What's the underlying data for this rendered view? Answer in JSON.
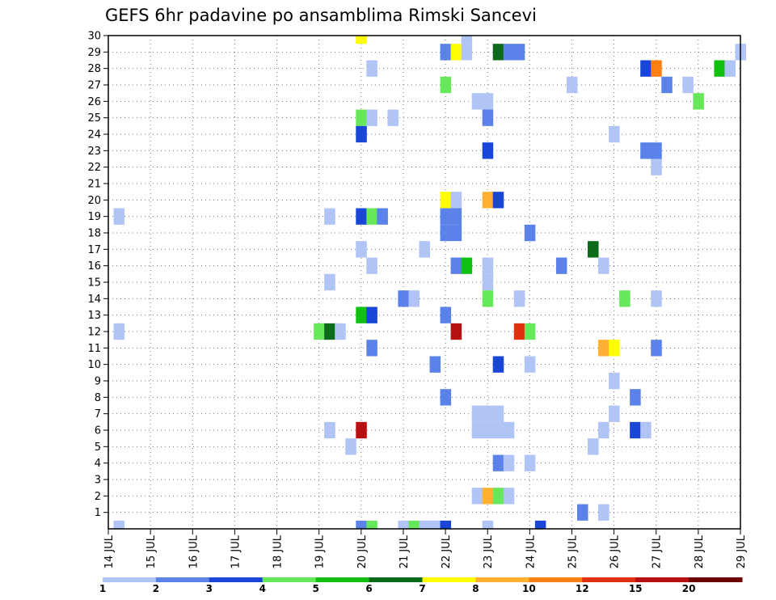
{
  "chart_data": {
    "type": "heatmap",
    "title": "GEFS 6hr padavine po ansamblima Rimski Sancevi",
    "xlabel": "",
    "ylabel": "",
    "x_ticks": [
      "14 JUL",
      "15 JUL",
      "16 JUL",
      "17 JUL",
      "18 JUL",
      "19 JUL",
      "20 JUL",
      "21 JUL",
      "22 JUL",
      "23 JUL",
      "24 JUL",
      "25 JUL",
      "26 JUL",
      "27 JUL",
      "28 JUL",
      "29 JUL"
    ],
    "y_ticks": [
      "1",
      "2",
      "3",
      "4",
      "5",
      "6",
      "7",
      "8",
      "9",
      "10",
      "11",
      "12",
      "13",
      "14",
      "15",
      "16",
      "17",
      "18",
      "19",
      "20",
      "21",
      "22",
      "23",
      "24",
      "25",
      "26",
      "27",
      "28",
      "29",
      "30"
    ],
    "x_range_days": [
      14,
      29
    ],
    "y_range": [
      0,
      30
    ],
    "grid": true,
    "legend": {
      "placement": "bottom",
      "labels": [
        "1",
        "2",
        "3",
        "4",
        "5",
        "6",
        "7",
        "8",
        "10",
        "12",
        "15",
        "20"
      ],
      "colors": [
        "#b0c4f5",
        "#5a82e8",
        "#1a46d8",
        "#66e85a",
        "#12c012",
        "#0b6b1a",
        "#ffff00",
        "#ffb030",
        "#ff8010",
        "#e03010",
        "#b81010",
        "#6e0000"
      ]
    },
    "cells": [
      [
        14.25,
        0,
        0
      ],
      [
        14.25,
        12,
        0
      ],
      [
        14.25,
        19,
        0
      ],
      [
        19.0,
        12,
        3
      ],
      [
        19.25,
        12,
        5
      ],
      [
        19.25,
        6,
        0
      ],
      [
        19.25,
        15,
        0
      ],
      [
        19.25,
        19,
        0
      ],
      [
        19.5,
        12,
        0
      ],
      [
        19.75,
        5,
        0
      ],
      [
        20.0,
        30,
        6
      ],
      [
        20.0,
        25,
        3
      ],
      [
        20.0,
        24,
        2
      ],
      [
        20.0,
        19,
        2
      ],
      [
        20.0,
        17,
        0
      ],
      [
        20.0,
        13,
        4
      ],
      [
        20.0,
        6,
        10
      ],
      [
        20.0,
        0,
        1
      ],
      [
        20.25,
        28,
        0
      ],
      [
        20.25,
        25,
        0
      ],
      [
        20.25,
        19,
        3
      ],
      [
        20.25,
        16,
        0
      ],
      [
        20.25,
        13,
        2
      ],
      [
        20.25,
        11,
        1
      ],
      [
        20.25,
        0,
        3
      ],
      [
        20.5,
        19,
        1
      ],
      [
        20.75,
        25,
        0
      ],
      [
        21.0,
        14,
        1
      ],
      [
        21.0,
        0,
        0
      ],
      [
        21.25,
        14,
        0
      ],
      [
        21.25,
        0,
        3
      ],
      [
        21.5,
        17,
        0
      ],
      [
        21.5,
        0,
        0
      ],
      [
        21.75,
        10,
        1
      ],
      [
        21.75,
        0,
        0
      ],
      [
        22.0,
        29,
        1
      ],
      [
        22.0,
        27,
        3
      ],
      [
        22.0,
        20,
        6
      ],
      [
        22.0,
        19,
        1
      ],
      [
        22.0,
        18,
        1
      ],
      [
        22.0,
        13,
        1
      ],
      [
        22.0,
        8,
        1
      ],
      [
        22.0,
        0,
        2
      ],
      [
        22.25,
        29,
        6
      ],
      [
        22.25,
        20,
        0
      ],
      [
        22.25,
        19,
        1
      ],
      [
        22.25,
        18,
        1
      ],
      [
        22.25,
        16,
        1
      ],
      [
        22.25,
        12,
        10
      ],
      [
        22.5,
        30,
        0
      ],
      [
        22.5,
        29,
        0
      ],
      [
        22.5,
        16,
        4
      ],
      [
        22.75,
        26,
        0
      ],
      [
        22.75,
        7,
        0
      ],
      [
        22.75,
        6,
        0
      ],
      [
        22.75,
        2,
        0
      ],
      [
        23.0,
        26,
        0
      ],
      [
        23.0,
        25,
        1
      ],
      [
        23.0,
        23,
        2
      ],
      [
        23.0,
        20,
        7
      ],
      [
        23.0,
        16,
        0
      ],
      [
        23.0,
        15,
        0
      ],
      [
        23.0,
        14,
        3
      ],
      [
        23.0,
        7,
        0
      ],
      [
        23.0,
        6,
        0
      ],
      [
        23.0,
        2,
        7
      ],
      [
        23.0,
        0,
        0
      ],
      [
        23.25,
        29,
        5
      ],
      [
        23.25,
        20,
        2
      ],
      [
        23.25,
        10,
        2
      ],
      [
        23.25,
        7,
        0
      ],
      [
        23.25,
        6,
        0
      ],
      [
        23.25,
        4,
        1
      ],
      [
        23.25,
        2,
        3
      ],
      [
        23.5,
        29,
        1
      ],
      [
        23.5,
        6,
        0
      ],
      [
        23.5,
        4,
        0
      ],
      [
        23.5,
        2,
        0
      ],
      [
        23.75,
        29,
        1
      ],
      [
        23.75,
        14,
        0
      ],
      [
        23.75,
        12,
        9
      ],
      [
        24.0,
        18,
        1
      ],
      [
        24.0,
        12,
        3
      ],
      [
        24.0,
        10,
        0
      ],
      [
        24.0,
        4,
        0
      ],
      [
        24.25,
        0,
        2
      ],
      [
        24.75,
        16,
        1
      ],
      [
        25.0,
        27,
        0
      ],
      [
        25.25,
        1,
        1
      ],
      [
        25.5,
        17,
        5
      ],
      [
        25.5,
        5,
        0
      ],
      [
        25.75,
        16,
        0
      ],
      [
        25.75,
        11,
        7
      ],
      [
        25.75,
        6,
        0
      ],
      [
        25.75,
        1,
        0
      ],
      [
        26.0,
        24,
        0
      ],
      [
        26.0,
        11,
        6
      ],
      [
        26.0,
        9,
        0
      ],
      [
        26.0,
        7,
        0
      ],
      [
        26.25,
        14,
        3
      ],
      [
        26.5,
        8,
        1
      ],
      [
        26.5,
        6,
        2
      ],
      [
        26.75,
        28,
        2
      ],
      [
        26.75,
        23,
        1
      ],
      [
        26.75,
        6,
        0
      ],
      [
        27.0,
        28,
        8
      ],
      [
        27.0,
        23,
        1
      ],
      [
        27.0,
        22,
        0
      ],
      [
        27.0,
        14,
        0
      ],
      [
        27.0,
        11,
        1
      ],
      [
        27.25,
        27,
        1
      ],
      [
        27.75,
        27,
        0
      ],
      [
        28.0,
        26,
        3
      ],
      [
        28.5,
        28,
        4
      ],
      [
        28.75,
        28,
        0
      ],
      [
        29.0,
        29,
        0
      ]
    ]
  }
}
